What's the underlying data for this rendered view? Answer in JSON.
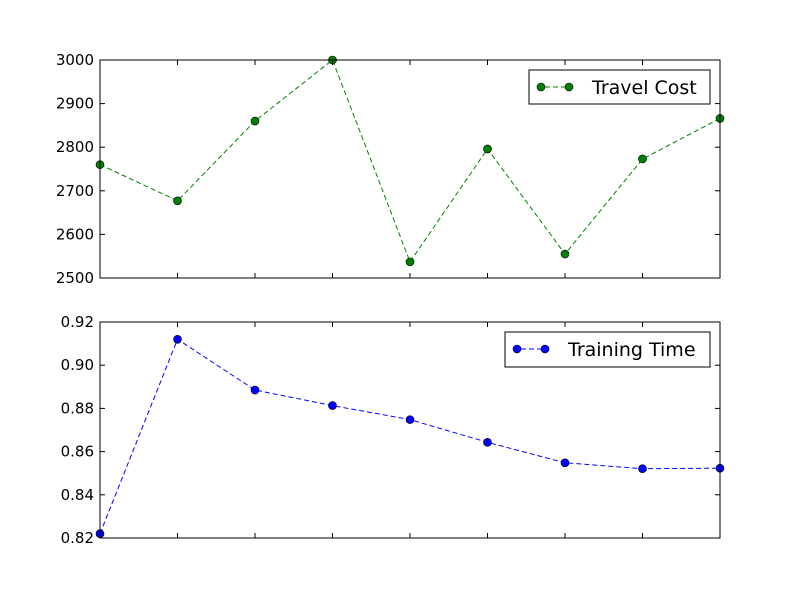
{
  "chart_data": [
    {
      "type": "line",
      "x": [
        0,
        1,
        2,
        3,
        4,
        5,
        6,
        7,
        8
      ],
      "ylim": [
        2500,
        3000
      ],
      "yticks": [
        2500,
        2600,
        2700,
        2800,
        2900,
        3000
      ],
      "ytick_labels": [
        "2500",
        "2600",
        "2700",
        "2800",
        "2900",
        "3000"
      ],
      "grid": false,
      "legend_position": "top-right",
      "series": [
        {
          "name": "Travel Cost",
          "color": "#008000",
          "linestyle": "dashed",
          "marker": "circle",
          "values": [
            2760,
            2677,
            2860,
            3000,
            2537,
            2796,
            2555,
            2773,
            2866
          ]
        }
      ]
    },
    {
      "type": "line",
      "x": [
        0,
        1,
        2,
        3,
        4,
        5,
        6,
        7,
        8
      ],
      "ylim": [
        0.82,
        0.92
      ],
      "yticks": [
        0.82,
        0.84,
        0.86,
        0.88,
        0.9,
        0.92
      ],
      "ytick_labels": [
        "0.82",
        "0.84",
        "0.86",
        "0.88",
        "0.90",
        "0.92"
      ],
      "grid": false,
      "legend_position": "top-right",
      "series": [
        {
          "name": "Training Time",
          "color": "#0000ff",
          "linestyle": "dashed",
          "marker": "circle",
          "values": [
            0.822,
            0.912,
            0.8885,
            0.8813,
            0.8748,
            0.8643,
            0.8548,
            0.8521,
            0.8523
          ]
        }
      ]
    }
  ]
}
